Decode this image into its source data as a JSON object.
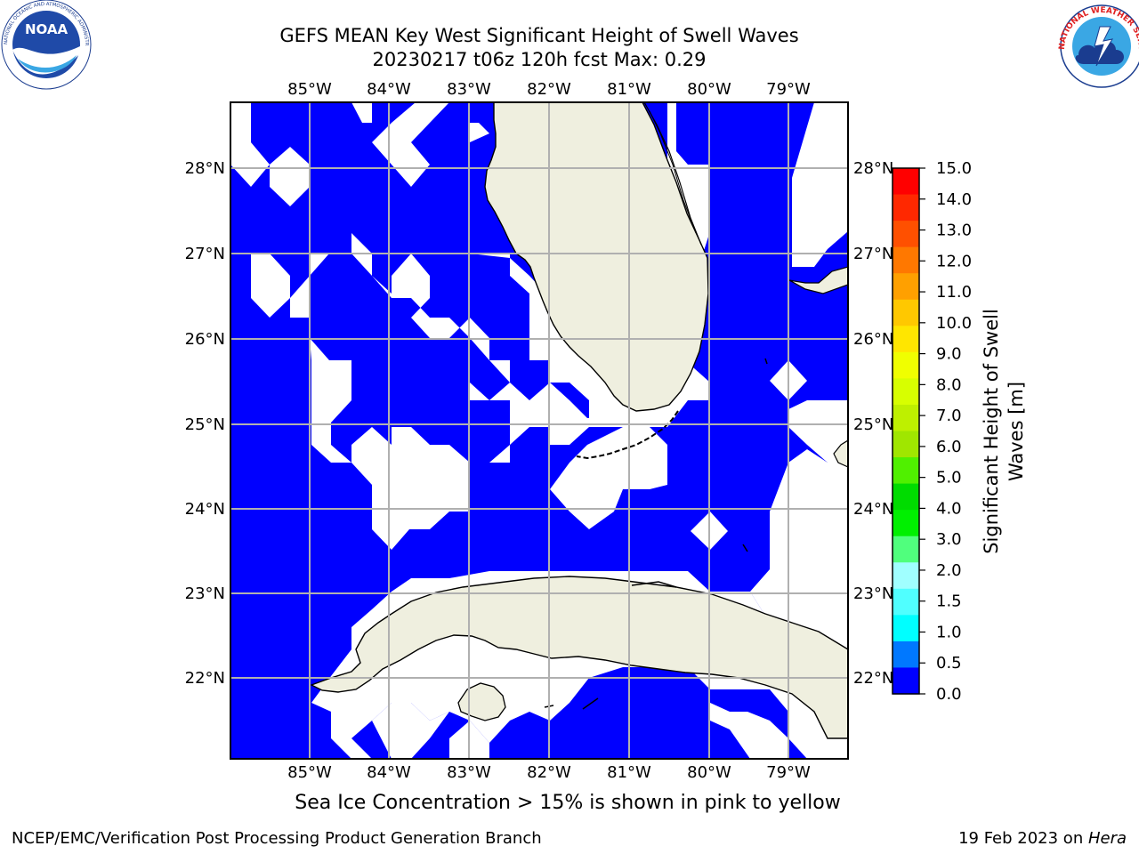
{
  "header": {
    "title_line1": "GEFS MEAN Key West Significant Height of Swell Waves",
    "title_line2": "20230217 t06z 120h fcst   Max: 0.29"
  },
  "logos": {
    "noaa": {
      "text": "NOAA",
      "ring_text": "NATIONAL OCEANIC AND ATMOSPHERIC ADMINISTRATION · U.S. DEPARTMENT OF COMMERCE"
    },
    "nws": {
      "ring_text": "NATIONAL WEATHER SERVICE"
    }
  },
  "map": {
    "lon_labels": [
      "85°W",
      "84°W",
      "83°W",
      "82°W",
      "81°W",
      "80°W",
      "79°W"
    ],
    "lat_labels": [
      "28°N",
      "27°N",
      "26°N",
      "25°N",
      "24°N",
      "23°N",
      "22°N"
    ],
    "lon_range": [
      -86.0,
      -78.25
    ],
    "lat_range": [
      21.1,
      28.75
    ],
    "colors": {
      "swell_fill": "#0000ff",
      "no_data": "#ffffff",
      "land": "#efefdf",
      "gridlines": "#b0b0b0"
    }
  },
  "colorbar": {
    "label": "Significant Height of Swell Waves [m]",
    "label_line1": "Significant Height of Swell",
    "label_line2": "Waves [m]",
    "ticks": [
      "15.0",
      "14.0",
      "13.0",
      "12.0",
      "11.0",
      "10.0",
      "9.0",
      "8.0",
      "7.0",
      "6.0",
      "5.0",
      "4.0",
      "3.0",
      "2.0",
      "1.5",
      "1.0",
      "0.5",
      "0.0"
    ],
    "colors_top_to_bottom": [
      "#ff0000",
      "#ff2800",
      "#ff5000",
      "#ff7800",
      "#ffa000",
      "#ffc800",
      "#ffe600",
      "#f0ff00",
      "#d7ff00",
      "#bef000",
      "#a0e600",
      "#50f000",
      "#00dc00",
      "#00f000",
      "#50ff7d",
      "#a0ffff",
      "#50ffff",
      "#00ffff",
      "#0078ff",
      "#0000ff"
    ]
  },
  "chart_data": {
    "type": "heatmap",
    "title": "GEFS MEAN Key West Significant Height of Swell Waves",
    "subtitle": "20230217 t06z 120h fcst   Max: 0.29",
    "max_value": 0.29,
    "colorbar_range": [
      0.0,
      15.0
    ],
    "unit": "m"
  },
  "notes": {
    "ice": "Sea Ice Concentration > 15% is shown in pink to yellow"
  },
  "footer": {
    "left": "NCEP/EMC/Verification Post Processing Product Generation Branch",
    "right_prefix": "19 Feb 2023 on ",
    "right_host": "Hera"
  }
}
